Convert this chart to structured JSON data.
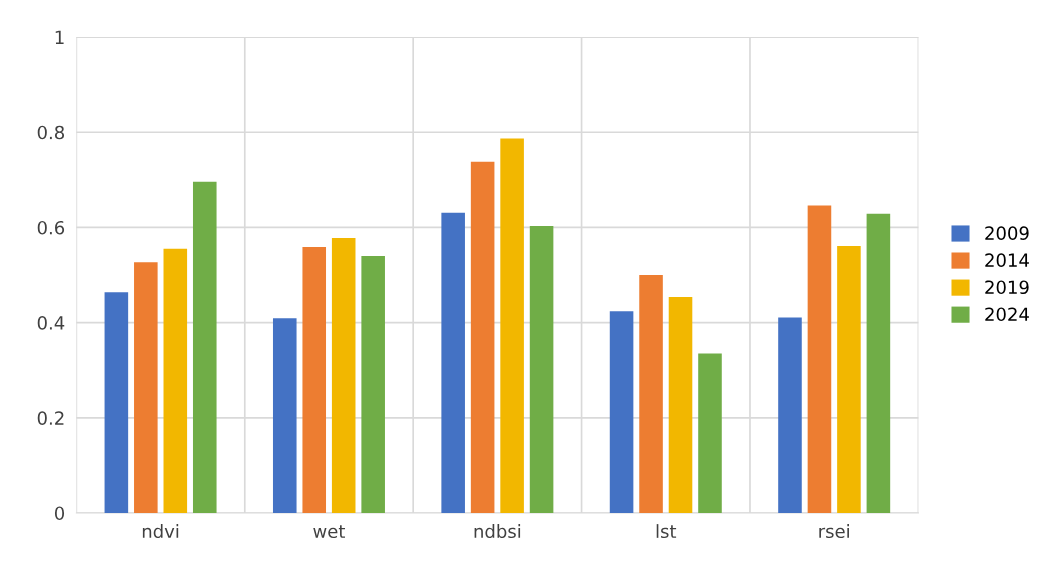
{
  "chart_data": {
    "type": "bar",
    "categories": [
      "ndvi",
      "wet",
      "ndbsi",
      "lst",
      "rsei"
    ],
    "series": [
      {
        "name": "2009",
        "color": "#4472c4",
        "values": [
          0.464,
          0.409,
          0.631,
          0.424,
          0.411
        ]
      },
      {
        "name": "2014",
        "color": "#ed7d31",
        "values": [
          0.527,
          0.559,
          0.738,
          0.5,
          0.646
        ]
      },
      {
        "name": "2019",
        "color": "#f2b700",
        "values": [
          0.555,
          0.578,
          0.787,
          0.454,
          0.561
        ]
      },
      {
        "name": "2024",
        "color": "#70ad47",
        "values": [
          0.696,
          0.54,
          0.603,
          0.335,
          0.629
        ]
      }
    ],
    "ylim": [
      0,
      1
    ],
    "yticks": [
      0,
      0.2,
      0.4,
      0.6,
      0.8,
      1
    ],
    "grid": true,
    "legend": "right"
  }
}
